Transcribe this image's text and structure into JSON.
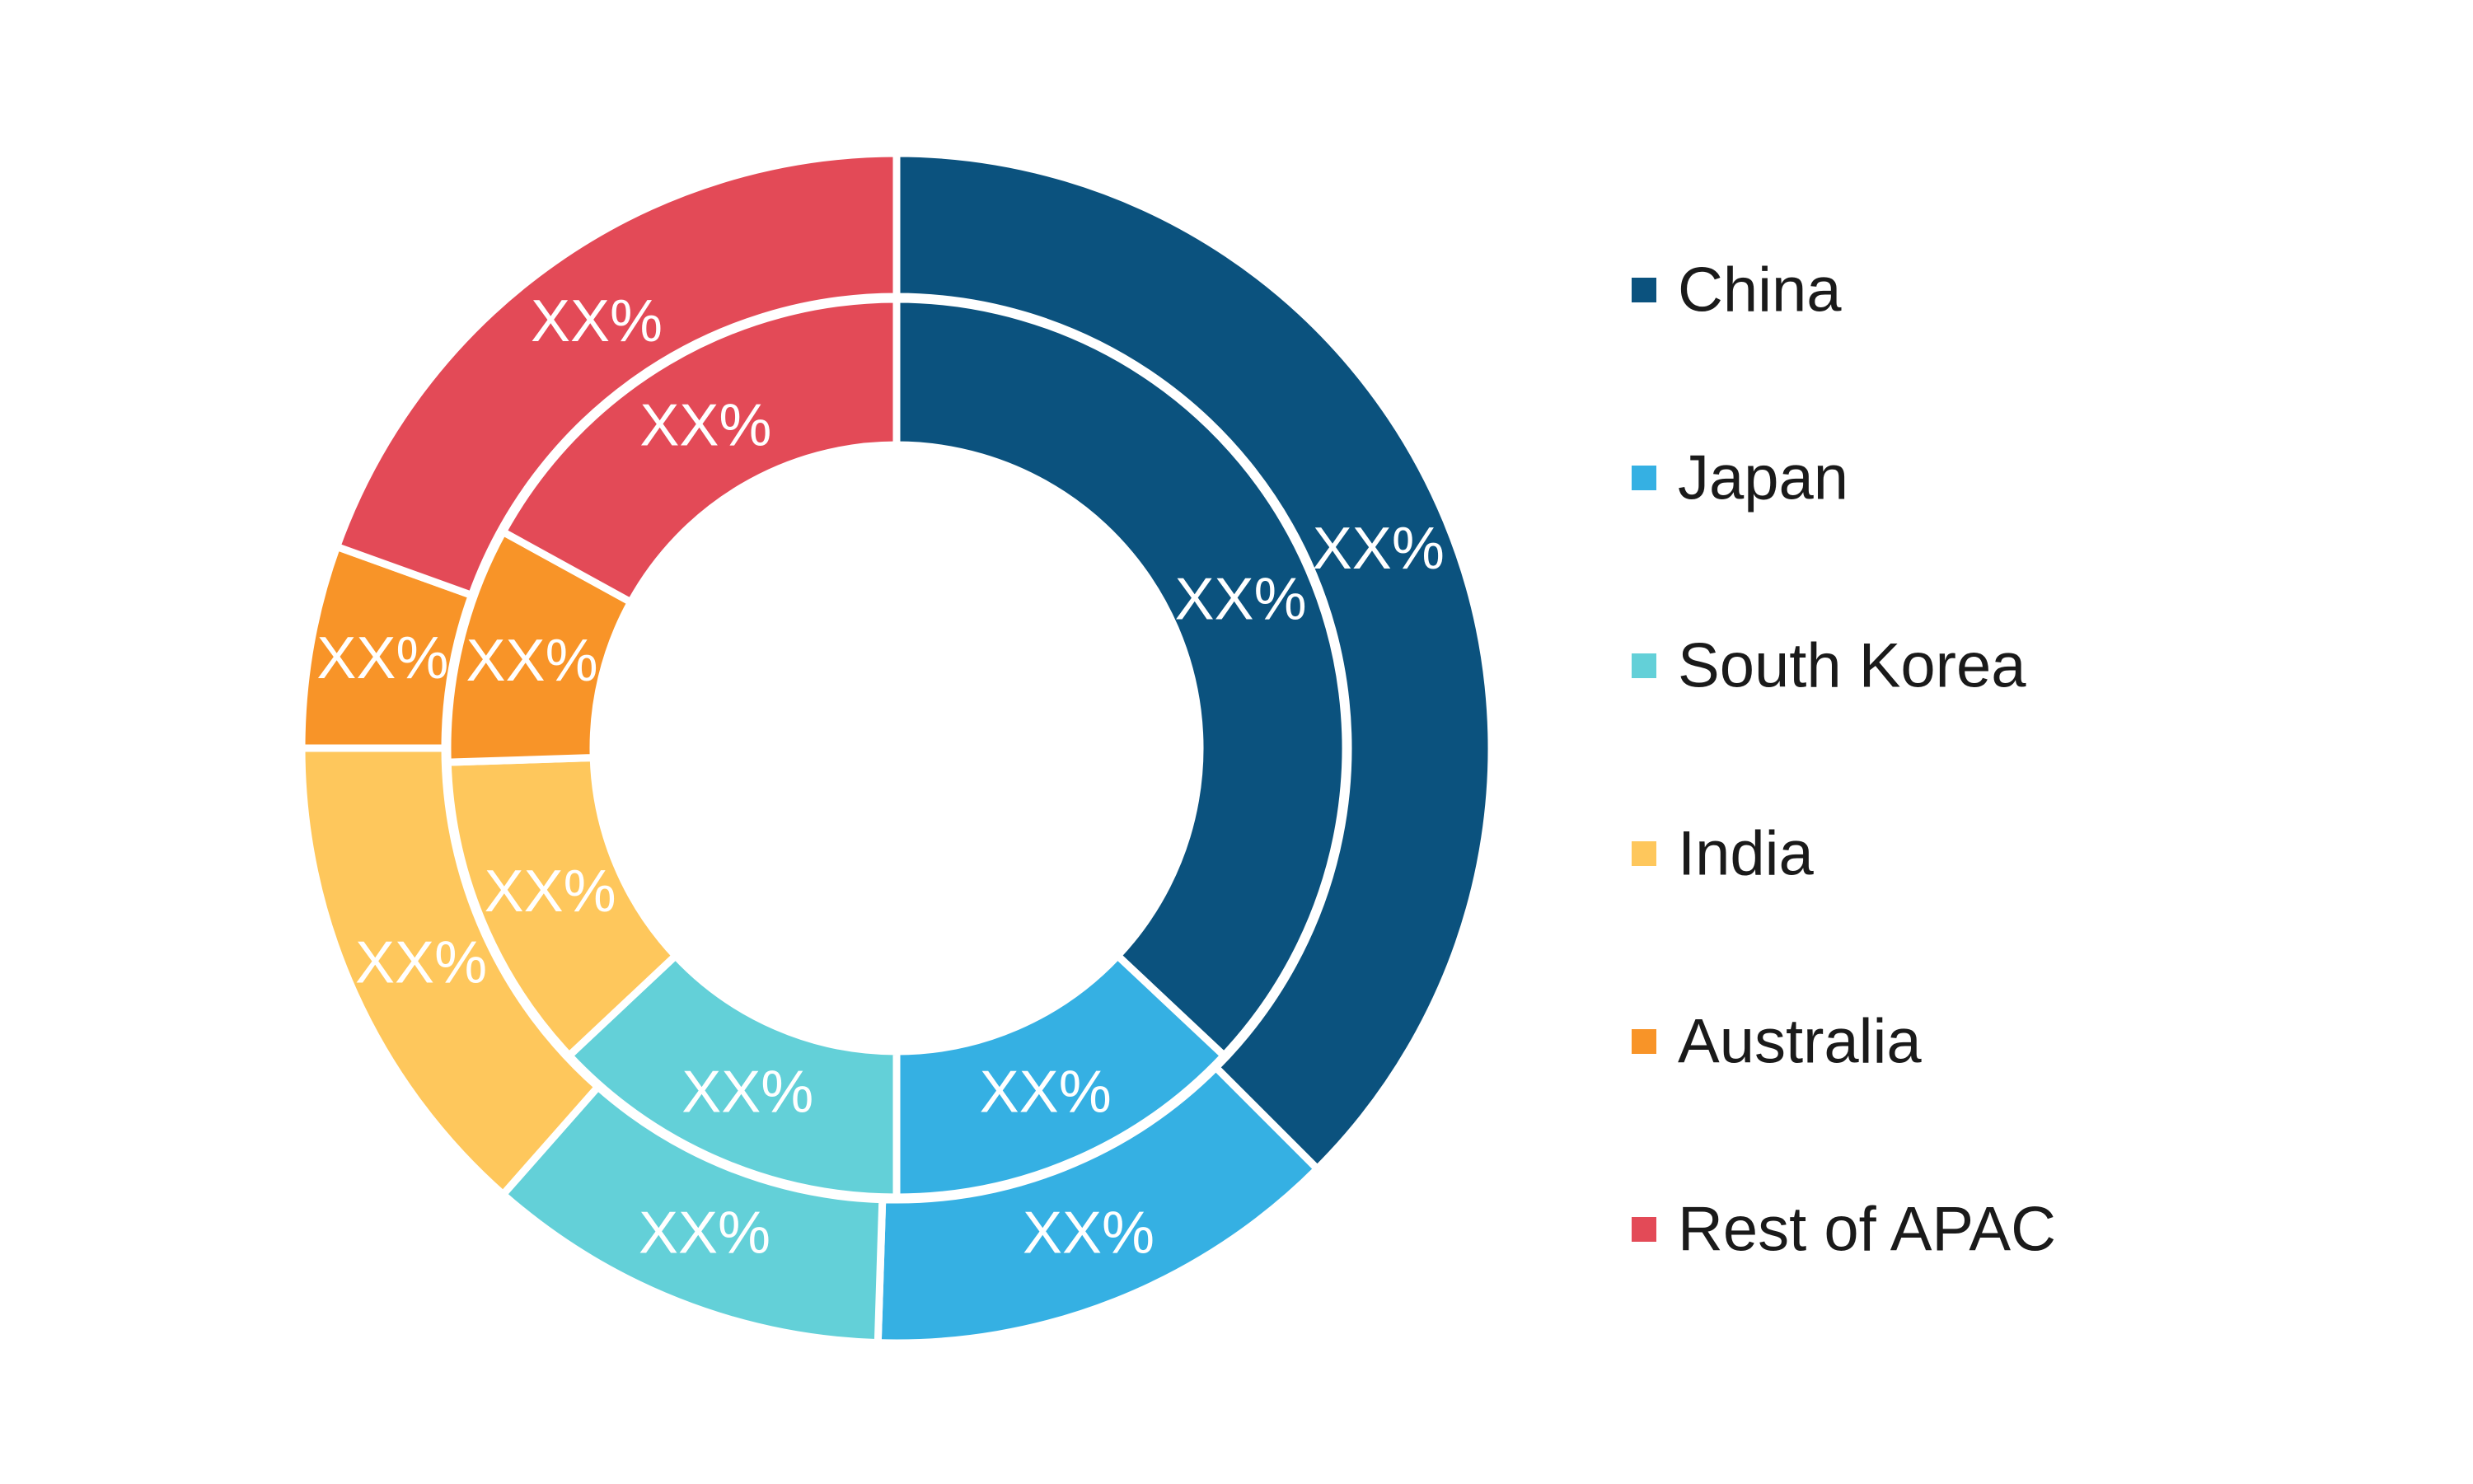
{
  "chart_data": {
    "type": "pie",
    "variant": "nested-donut",
    "categories": [
      "China",
      "Japan",
      "South Korea",
      "India",
      "Australia",
      "Rest of APAC"
    ],
    "colors": [
      "#0b527e",
      "#35b0e3",
      "#63d0d8",
      "#fec75c",
      "#f89428",
      "#e34a57"
    ],
    "series": [
      {
        "ring": "outer",
        "values": [
          37.5,
          13.0,
          11.0,
          13.5,
          5.5,
          19.5
        ],
        "labels": [
          "XX%",
          "XX%",
          "XX%",
          "XX%",
          "XX%",
          "XX%"
        ]
      },
      {
        "ring": "inner",
        "values": [
          37.0,
          13.0,
          13.0,
          11.5,
          8.5,
          17.0
        ],
        "labels": [
          "XX%",
          "XX%",
          "XX%",
          "XX%",
          "XX%",
          "XX%"
        ]
      }
    ],
    "legend": {
      "placement": "right",
      "entries": [
        "China",
        "Japan",
        "South Korea",
        "India",
        "Australia",
        "Rest of APAC"
      ]
    },
    "title": ""
  }
}
